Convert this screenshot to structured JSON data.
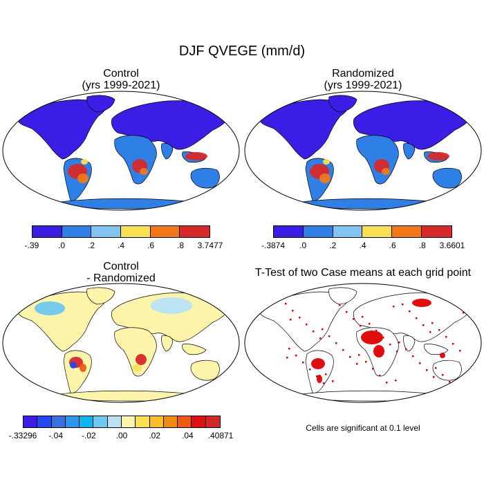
{
  "figure": {
    "title": "DJF QVEGE (mm/d)"
  },
  "panels": [
    {
      "id": "control",
      "title_line1": "Control",
      "title_line2": "(yrs 1999-2021)",
      "colorbar": {
        "colors": [
          "#3a1ee6",
          "#2f80e6",
          "#80c4f0",
          "#f8e050",
          "#f07818",
          "#d82828"
        ],
        "tick_labels": [
          "-.39",
          ".0",
          ".2",
          ".4",
          ".6",
          ".8",
          "3.7477"
        ]
      }
    },
    {
      "id": "randomized",
      "title_line1": "Randomized",
      "title_line2": "(yrs 1999-2021)",
      "colorbar": {
        "colors": [
          "#3a1ee6",
          "#2f80e6",
          "#80c4f0",
          "#f8e050",
          "#f07818",
          "#d82828"
        ],
        "tick_labels": [
          "-.3874",
          ".0",
          ".2",
          ".4",
          ".6",
          ".8",
          "3.6601"
        ]
      }
    },
    {
      "id": "difference",
      "title_line1": "Control",
      "title_line2": "- Randomized",
      "colorbar": {
        "colors": [
          "#3a1ee6",
          "#2648f0",
          "#3a70e0",
          "#2f96f0",
          "#10b4f0",
          "#6cc8f0",
          "#b8e2f4",
          "#fcf4a8",
          "#f8e050",
          "#f8c028",
          "#f08c10",
          "#f05a10",
          "#e01010",
          "#d02828"
        ],
        "tick_labels": [
          "-.33296",
          "-.04",
          "-.02",
          ".00",
          ".02",
          ".04",
          ".40871"
        ]
      }
    },
    {
      "id": "ttest",
      "title_line1": "T-Test of two Case means at each grid point",
      "note": "Cells are significant at 0.1 level"
    }
  ]
}
